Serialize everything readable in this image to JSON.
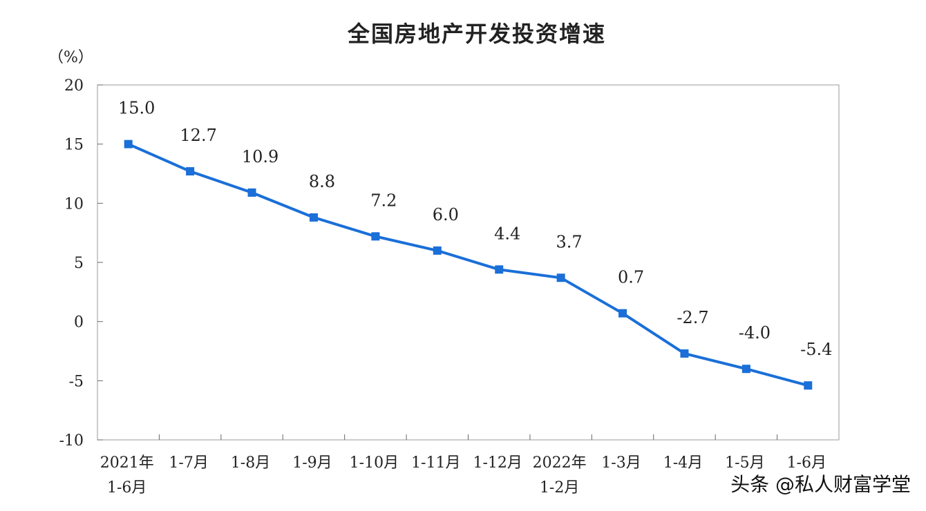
{
  "chart_data": {
    "type": "line",
    "title": "全国房地产开发投资增速",
    "ylabel": "（%）",
    "ylim": [
      -10,
      20
    ],
    "yticks": [
      20,
      15,
      10,
      5,
      0,
      -5,
      -10
    ],
    "categories": [
      [
        "2021年",
        "1-6月"
      ],
      [
        "1-7月"
      ],
      [
        "1-8月"
      ],
      [
        "1-9月"
      ],
      [
        "1-10月"
      ],
      [
        "1-11月"
      ],
      [
        "1-12月"
      ],
      [
        "2022年",
        "1-2月"
      ],
      [
        "1-3月"
      ],
      [
        "1-4月"
      ],
      [
        "1-5月"
      ],
      [
        "1-6月"
      ]
    ],
    "values": [
      15.0,
      12.7,
      10.9,
      8.8,
      7.2,
      6.0,
      4.4,
      3.7,
      0.7,
      -2.7,
      -4.0,
      -5.4
    ],
    "labels": [
      "15.0",
      "12.7",
      "10.9",
      "8.8",
      "7.2",
      "6.0",
      "4.4",
      "3.7",
      "0.7",
      "-2.7",
      "-4.0",
      "-5.4"
    ],
    "grid": false,
    "line_color": "#1a6fd8"
  },
  "watermark": "头条 @私人财富学堂"
}
